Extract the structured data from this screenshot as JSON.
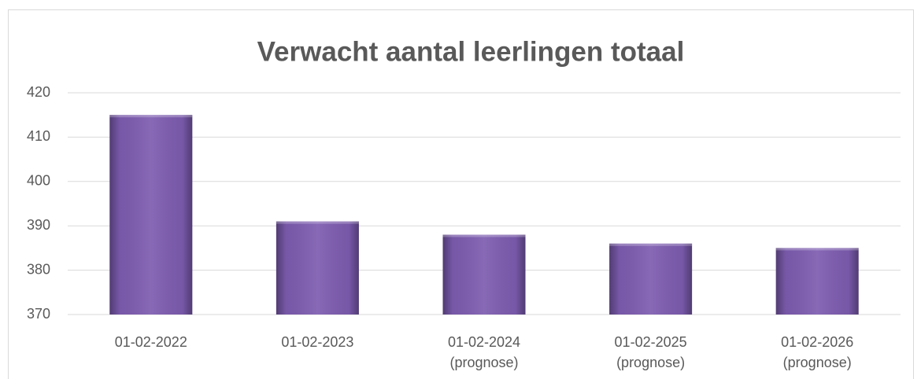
{
  "chart_data": {
    "type": "bar",
    "title": "Verwacht aantal leerlingen totaal",
    "categories": [
      "01-02-2022",
      "01-02-2023",
      "01-02-2024\n(prognose)",
      "01-02-2025\n(prognose)",
      "01-02-2026\n(prognose)"
    ],
    "values": [
      415,
      391,
      388,
      386,
      385
    ],
    "color": "#7d5cb0",
    "ylim": [
      370,
      420
    ],
    "yticks": [
      370,
      380,
      390,
      400,
      410,
      420
    ],
    "grid": true
  }
}
